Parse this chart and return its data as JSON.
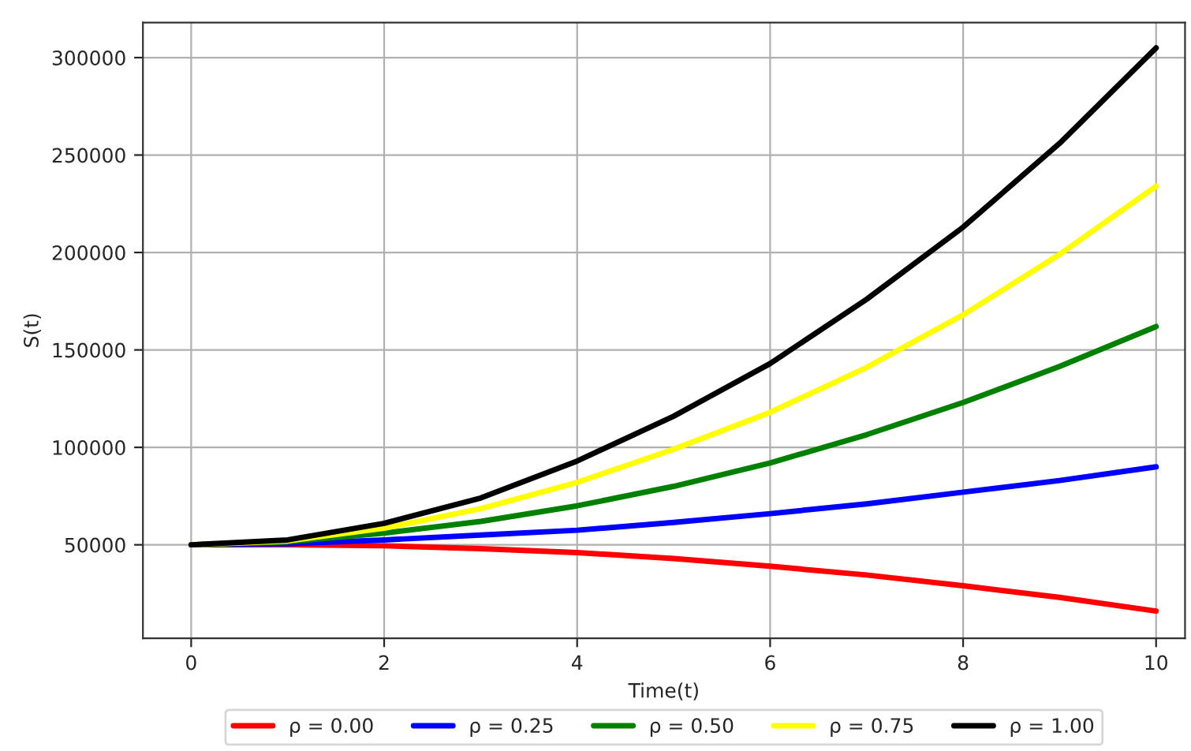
{
  "chart_data": {
    "type": "line",
    "xlabel": "Time(t)",
    "ylabel": "S(t)",
    "x": [
      0,
      1,
      2,
      3,
      4,
      5,
      6,
      7,
      8,
      9,
      10
    ],
    "series": [
      {
        "name": "ρ = 0.00",
        "color": "#ff0000",
        "values": [
          50000,
          50000,
          49500,
          48000,
          46000,
          43000,
          39000,
          34500,
          29000,
          23000,
          16000
        ]
      },
      {
        "name": "ρ = 0.25",
        "color": "#0000ff",
        "values": [
          50000,
          50500,
          52500,
          55000,
          57500,
          61500,
          66000,
          71000,
          77000,
          83000,
          90000
        ]
      },
      {
        "name": "ρ = 0.50",
        "color": "#008000",
        "values": [
          50000,
          51500,
          56000,
          62000,
          70000,
          80000,
          92000,
          106500,
          123000,
          141500,
          162000
        ]
      },
      {
        "name": "ρ = 0.75",
        "color": "#ffff00",
        "values": [
          50000,
          52000,
          58500,
          68500,
          82000,
          99000,
          118000,
          141000,
          168000,
          199000,
          234000
        ]
      },
      {
        "name": "ρ = 1.00",
        "color": "#000000",
        "values": [
          50000,
          52500,
          61000,
          74000,
          93000,
          116000,
          143000,
          176000,
          213000,
          256000,
          305000
        ]
      }
    ],
    "xlim": [
      -0.5,
      10.3
    ],
    "ylim": [
      2000,
      318000
    ],
    "xticks": [
      0,
      2,
      4,
      6,
      8,
      10
    ],
    "yticks": [
      50000,
      100000,
      150000,
      200000,
      250000,
      300000
    ],
    "grid": true,
    "legend": "bottom",
    "marker": "none",
    "line_style": "solid"
  }
}
